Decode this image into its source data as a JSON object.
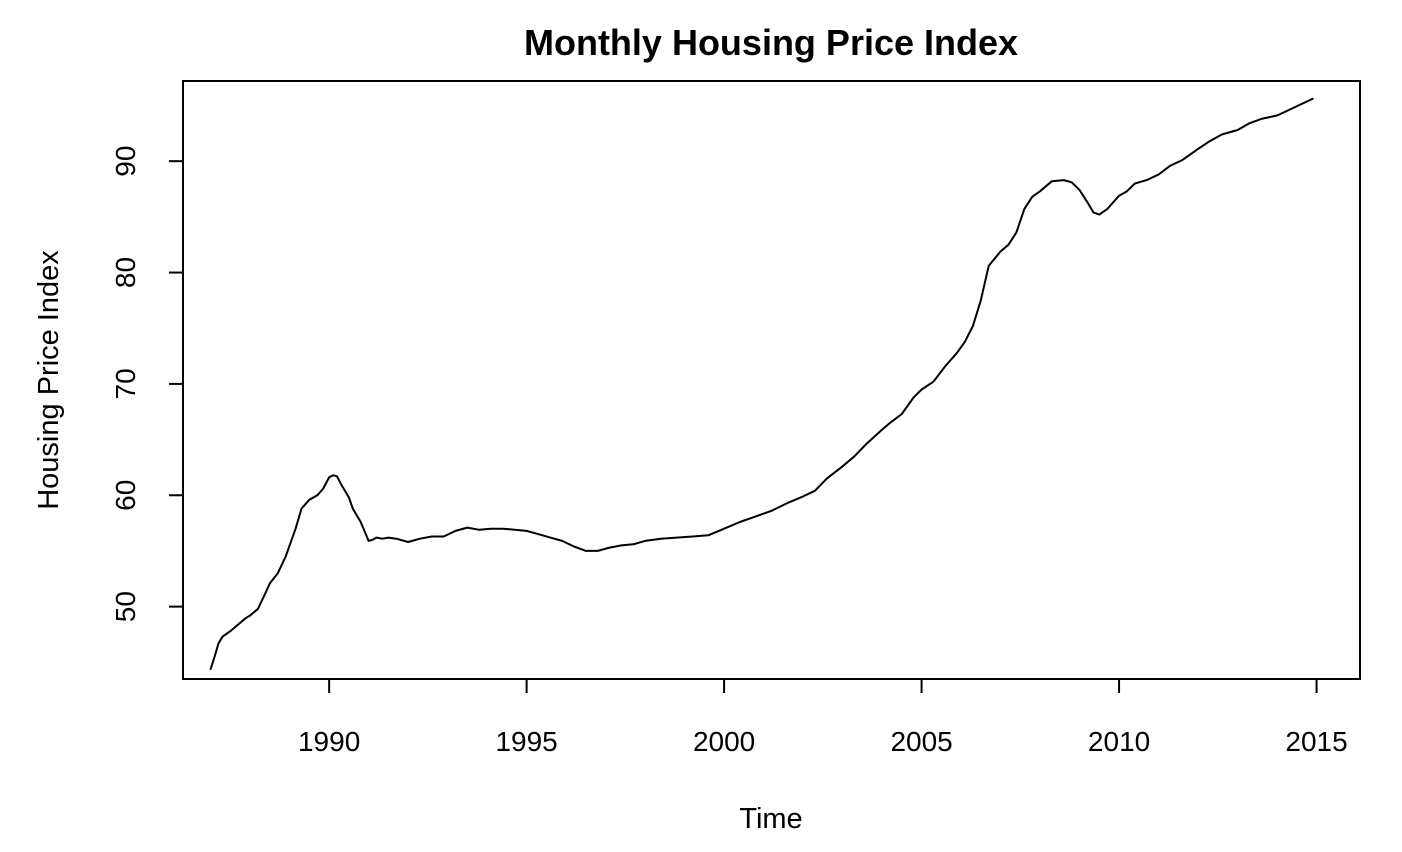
{
  "chart_data": {
    "type": "line",
    "title": "Monthly Housing Price Index",
    "xlabel": "Time",
    "ylabel": "Housing Price Index",
    "xlim": [
      1986.3,
      2016.1
    ],
    "ylim": [
      43.5,
      97.2
    ],
    "xticks": [
      1990,
      1995,
      2000,
      2005,
      2010,
      2015
    ],
    "yticks": [
      50,
      60,
      70,
      80,
      90
    ],
    "grid": false,
    "legend": "none",
    "line_color": "#000000",
    "series": [
      {
        "x": [
          1987.0,
          1987.1,
          1987.2,
          1987.3,
          1987.5,
          1987.7,
          1987.9,
          1988.0,
          1988.2,
          1988.4,
          1988.5,
          1988.7,
          1988.9,
          1989.0,
          1989.15,
          1989.3,
          1989.5,
          1989.7,
          1989.85,
          1990.0,
          1990.1,
          1990.2,
          1990.3,
          1990.5,
          1990.6,
          1990.8,
          1991.0,
          1991.1,
          1991.2,
          1991.35,
          1991.5,
          1991.7,
          1992.0,
          1992.3,
          1992.6,
          1992.9,
          1993.2,
          1993.5,
          1993.8,
          1994.1,
          1994.4,
          1994.7,
          1995.0,
          1995.3,
          1995.6,
          1995.9,
          1996.2,
          1996.5,
          1996.8,
          1997.1,
          1997.4,
          1997.7,
          1998.0,
          1998.4,
          1998.8,
          1999.2,
          1999.6,
          2000.0,
          2000.4,
          2000.8,
          2001.2,
          2001.6,
          2002.0,
          2002.3,
          2002.6,
          2003.0,
          2003.3,
          2003.6,
          2004.0,
          2004.2,
          2004.5,
          2004.8,
          2005.0,
          2005.3,
          2005.6,
          2005.9,
          2006.1,
          2006.3,
          2006.5,
          2006.7,
          2007.0,
          2007.2,
          2007.4,
          2007.6,
          2007.8,
          2008.0,
          2008.3,
          2008.6,
          2008.8,
          2009.0,
          2009.2,
          2009.35,
          2009.5,
          2009.7,
          2010.0,
          2010.2,
          2010.4,
          2010.7,
          2011.0,
          2011.3,
          2011.6,
          2012.0,
          2012.3,
          2012.6,
          2013.0,
          2013.3,
          2013.6,
          2014.0,
          2014.3,
          2014.6,
          2014.9
        ],
        "values": [
          44.4,
          45.5,
          46.7,
          47.3,
          47.8,
          48.4,
          49.0,
          49.2,
          49.8,
          51.3,
          52.1,
          53.0,
          54.5,
          55.5,
          57.0,
          58.8,
          59.6,
          60.0,
          60.6,
          61.6,
          61.8,
          61.7,
          61.0,
          59.8,
          58.8,
          57.6,
          55.9,
          56.0,
          56.2,
          56.1,
          56.2,
          56.1,
          55.8,
          56.1,
          56.3,
          56.3,
          56.8,
          57.1,
          56.9,
          57.0,
          57.0,
          56.9,
          56.8,
          56.5,
          56.2,
          55.9,
          55.4,
          55.0,
          55.0,
          55.3,
          55.5,
          55.6,
          55.9,
          56.1,
          56.2,
          56.3,
          56.4,
          57.0,
          57.6,
          58.1,
          58.6,
          59.3,
          59.9,
          60.4,
          61.5,
          62.6,
          63.5,
          64.6,
          65.9,
          66.5,
          67.3,
          68.8,
          69.5,
          70.2,
          71.6,
          72.8,
          73.8,
          75.2,
          77.5,
          80.6,
          81.9,
          82.5,
          83.6,
          85.7,
          86.8,
          87.3,
          88.2,
          88.3,
          88.1,
          87.4,
          86.3,
          85.4,
          85.2,
          85.7,
          86.9,
          87.3,
          88.0,
          88.3,
          88.8,
          89.6,
          90.1,
          91.1,
          91.8,
          92.4,
          92.8,
          93.4,
          93.8,
          94.1,
          94.6,
          95.1,
          95.6
        ]
      }
    ]
  }
}
